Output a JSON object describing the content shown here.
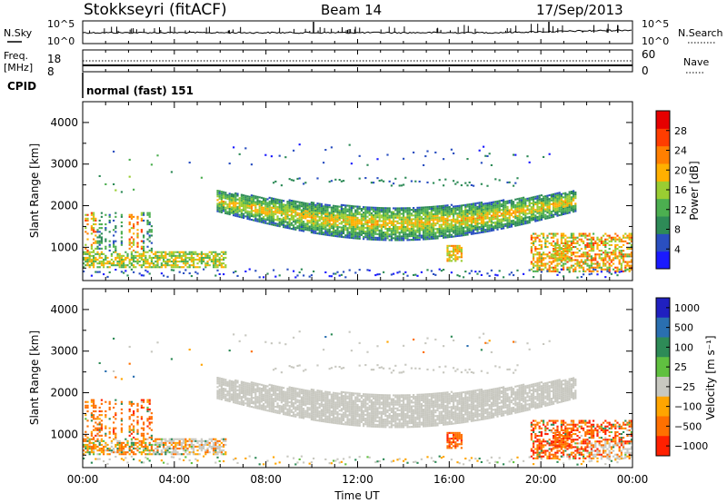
{
  "header": {
    "station": "Stokkseyri (fitACF)",
    "beam": "Beam 14",
    "date": "17/Sep/2013"
  },
  "strips": {
    "nsky_label": "N.Sky",
    "nsearch_label": "N.Search",
    "freq_label": "Freq.",
    "freq_unit": "[MHz]",
    "nave_label": "Nave",
    "cpid_label": "CPID",
    "cpid_text": "normal (fast) 151",
    "noise_ticks": [
      "10^5",
      "10^0"
    ],
    "noise_right_ticks": [
      "10^5",
      "10^0"
    ],
    "freq_ticks": [
      "18",
      "8"
    ],
    "nave_ticks": [
      "60",
      "0"
    ]
  },
  "colors": {
    "power": [
      "#1a1aff",
      "#2a4fc0",
      "#2e8b57",
      "#4caf50",
      "#9acd32",
      "#ffb000",
      "#ff7f00",
      "#ff3d00",
      "#e60000"
    ],
    "velocity": [
      "#2020c0",
      "#2a6fb0",
      "#2e8b57",
      "#60c040",
      "#c8c8c0",
      "#ffa500",
      "#ff7000",
      "#ff2000"
    ]
  },
  "chart_data": [
    {
      "type": "heatmap",
      "name": "power",
      "ylabel": "Slant Range [km]",
      "yticks": [
        "1000",
        "2000",
        "3000",
        "4000"
      ],
      "ylim": [
        200,
        4500
      ],
      "xlim": [
        0,
        24
      ],
      "colorbar": {
        "label": "Power [dB]",
        "ticks": [
          "4",
          "8",
          "12",
          "16",
          "20",
          "24",
          "28"
        ],
        "range": [
          0,
          32
        ]
      },
      "features": [
        {
          "desc": "main arc",
          "start_h": 5.8,
          "end_h": 21.5,
          "range_center_km": 1500,
          "range_min_km": 1000,
          "range_max_km": 2200,
          "peak_db": 24
        },
        {
          "desc": "near-range early band",
          "start_h": 0.0,
          "end_h": 6.0,
          "range_min_km": 500,
          "range_max_km": 900,
          "peak_db": 22
        },
        {
          "desc": "late-night near range",
          "start_h": 19.5,
          "end_h": 24.0,
          "range_min_km": 400,
          "range_max_km": 1300,
          "peak_db": 26
        }
      ]
    },
    {
      "type": "heatmap",
      "name": "velocity",
      "ylabel": "Slant Range [km]",
      "yticks": [
        "1000",
        "2000",
        "3000",
        "4000"
      ],
      "ylim": [
        200,
        4500
      ],
      "xlim": [
        0,
        24
      ],
      "xticks": [
        "00:00",
        "04:00",
        "08:00",
        "12:00",
        "16:00",
        "20:00",
        "00:00"
      ],
      "xlabel": "Time UT",
      "colorbar": {
        "label": "Velocity [m s⁻¹]",
        "ticks": [
          "1000",
          "500",
          "100",
          "25",
          "−25",
          "−100",
          "−500",
          "−1000"
        ]
      },
      "features": [
        {
          "desc": "main arc (ground scatter, ~0 m/s)",
          "start_h": 6.0,
          "end_h": 21.5,
          "range_center_km": 1600,
          "velocity": 0
        },
        {
          "desc": "early mixed",
          "start_h": 0.0,
          "end_h": 3.0,
          "range_min_km": 500,
          "range_max_km": 1700,
          "velocity": -300
        }
      ]
    }
  ]
}
